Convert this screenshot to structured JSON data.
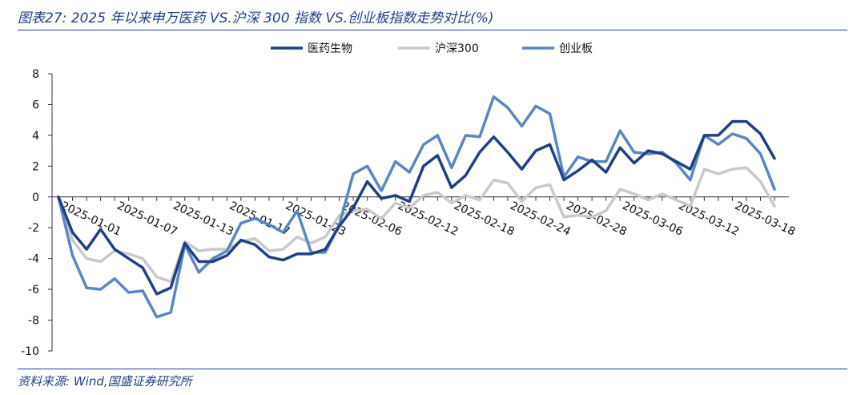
{
  "header": {
    "title": "图表27:  2025 年以来申万医药 VS.沪深 300 指数 VS.创业板指数走势对比(%)"
  },
  "footer": {
    "source": "资料来源:  Wind,国盛证券研究所"
  },
  "colors": {
    "accent": "#1f3f86"
  },
  "chart_data": {
    "type": "line",
    "title": "",
    "xlabel": "",
    "ylabel": "",
    "ylim": [
      -10,
      8
    ],
    "y_ticks": [
      8,
      6,
      4,
      2,
      0,
      -2,
      -4,
      -6,
      -8,
      -10
    ],
    "grid": false,
    "legend_position": "top-center",
    "x_tick_labels": [
      {
        "label": "2025-01-01",
        "index": 0
      },
      {
        "label": "2025-01-07",
        "index": 4
      },
      {
        "label": "2025-01-13",
        "index": 8
      },
      {
        "label": "2025-01-17",
        "index": 12
      },
      {
        "label": "2025-01-23",
        "index": 16
      },
      {
        "label": "2025-02-06",
        "index": 20
      },
      {
        "label": "2025-02-12",
        "index": 24
      },
      {
        "label": "2025-02-18",
        "index": 28
      },
      {
        "label": "2025-02-24",
        "index": 32
      },
      {
        "label": "2025-02-28",
        "index": 36
      },
      {
        "label": "2025-03-06",
        "index": 40
      },
      {
        "label": "2025-03-12",
        "index": 44
      },
      {
        "label": "2025-03-18",
        "index": 48
      }
    ],
    "series": [
      {
        "name": "医药生物",
        "color": "#1f3f86",
        "values": [
          0,
          -2.3,
          -3.4,
          -2.1,
          -3.4,
          -4.0,
          -4.6,
          -6.3,
          -5.9,
          -3.0,
          -4.2,
          -4.2,
          -3.8,
          -2.8,
          -3.1,
          -3.9,
          -4.1,
          -3.7,
          -3.7,
          -3.4,
          -1.9,
          -0.7,
          1.0,
          -0.1,
          0.1,
          -0.3,
          2.0,
          2.7,
          0.6,
          1.4,
          2.9,
          3.9,
          2.9,
          1.8,
          3.0,
          3.4,
          1.1,
          1.7,
          2.4,
          1.6,
          3.2,
          2.2,
          3.0,
          2.8,
          2.3,
          1.8,
          4.0,
          4.0,
          4.9,
          4.9,
          4.1,
          2.5
        ]
      },
      {
        "name": "沪深300",
        "color": "#c9c9c9",
        "values": [
          0,
          -2.8,
          -4.0,
          -4.2,
          -3.5,
          -3.7,
          -4.0,
          -5.2,
          -5.5,
          -2.9,
          -3.5,
          -3.4,
          -3.4,
          -2.9,
          -2.7,
          -3.5,
          -3.4,
          -2.6,
          -3.0,
          -2.6,
          -1.2,
          -0.9,
          -0.8,
          -1.4,
          -0.4,
          -0.7,
          0.1,
          0.3,
          -0.4,
          0.1,
          -0.2,
          1.1,
          0.9,
          -0.3,
          0.6,
          0.8,
          -1.3,
          -1.2,
          -1.3,
          -0.9,
          0.5,
          0.2,
          -0.2,
          0.2,
          -0.2,
          -0.6,
          1.8,
          1.5,
          1.8,
          1.9,
          1.0,
          -0.6
        ]
      },
      {
        "name": "创业板",
        "color": "#5b86c4",
        "values": [
          0,
          -3.8,
          -5.9,
          -6.0,
          -5.3,
          -6.2,
          -6.1,
          -7.8,
          -7.5,
          -3.1,
          -4.9,
          -4.0,
          -3.5,
          -1.7,
          -1.4,
          -1.8,
          -2.3,
          -0.9,
          -3.6,
          -3.6,
          -1.8,
          1.5,
          2.0,
          0.4,
          2.3,
          1.6,
          3.4,
          4.0,
          1.9,
          4.0,
          3.9,
          6.5,
          5.8,
          4.6,
          5.9,
          5.4,
          1.3,
          2.6,
          2.3,
          2.3,
          4.3,
          2.9,
          2.8,
          2.9,
          2.2,
          1.1,
          4.0,
          3.4,
          4.1,
          3.8,
          2.8,
          0.5
        ]
      }
    ]
  }
}
